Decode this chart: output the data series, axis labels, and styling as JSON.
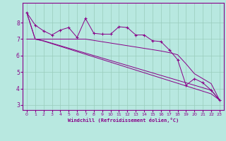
{
  "xlabel": "Windchill (Refroidissement éolien,°C)",
  "xlim": [
    -0.5,
    23.5
  ],
  "ylim": [
    2.7,
    9.2
  ],
  "xticks": [
    0,
    1,
    2,
    3,
    4,
    5,
    6,
    7,
    8,
    9,
    10,
    11,
    12,
    13,
    14,
    15,
    16,
    17,
    18,
    19,
    20,
    21,
    22,
    23
  ],
  "yticks": [
    3,
    4,
    5,
    6,
    7,
    8
  ],
  "line_color": "#880088",
  "bg_color": "#b8e8e0",
  "grid_color": "#99ccbb",
  "line1_y": [
    8.6,
    7.85,
    7.5,
    7.25,
    7.55,
    7.7,
    7.1,
    8.25,
    7.35,
    7.3,
    7.3,
    7.75,
    7.7,
    7.25,
    7.25,
    6.9,
    6.85,
    6.35,
    5.75,
    4.2,
    4.6,
    4.35,
    3.9,
    3.3
  ],
  "line2_y": [
    7.0,
    7.0,
    7.0,
    7.0,
    7.0,
    7.0,
    7.0,
    7.0,
    6.92,
    6.84,
    6.76,
    6.68,
    6.6,
    6.52,
    6.44,
    6.36,
    6.28,
    6.18,
    6.05,
    5.5,
    4.9,
    4.6,
    4.3,
    3.3
  ],
  "line3_y": [
    8.6,
    7.0,
    6.9,
    6.75,
    6.6,
    6.45,
    6.3,
    6.15,
    6.0,
    5.85,
    5.7,
    5.55,
    5.4,
    5.25,
    5.1,
    4.95,
    4.8,
    4.65,
    4.5,
    4.35,
    4.2,
    4.05,
    3.9,
    3.3
  ],
  "line4_y": [
    8.6,
    7.0,
    6.88,
    6.72,
    6.56,
    6.4,
    6.24,
    6.08,
    5.92,
    5.76,
    5.6,
    5.44,
    5.28,
    5.12,
    4.96,
    4.8,
    4.64,
    4.48,
    4.32,
    4.16,
    4.0,
    3.84,
    3.68,
    3.3
  ]
}
